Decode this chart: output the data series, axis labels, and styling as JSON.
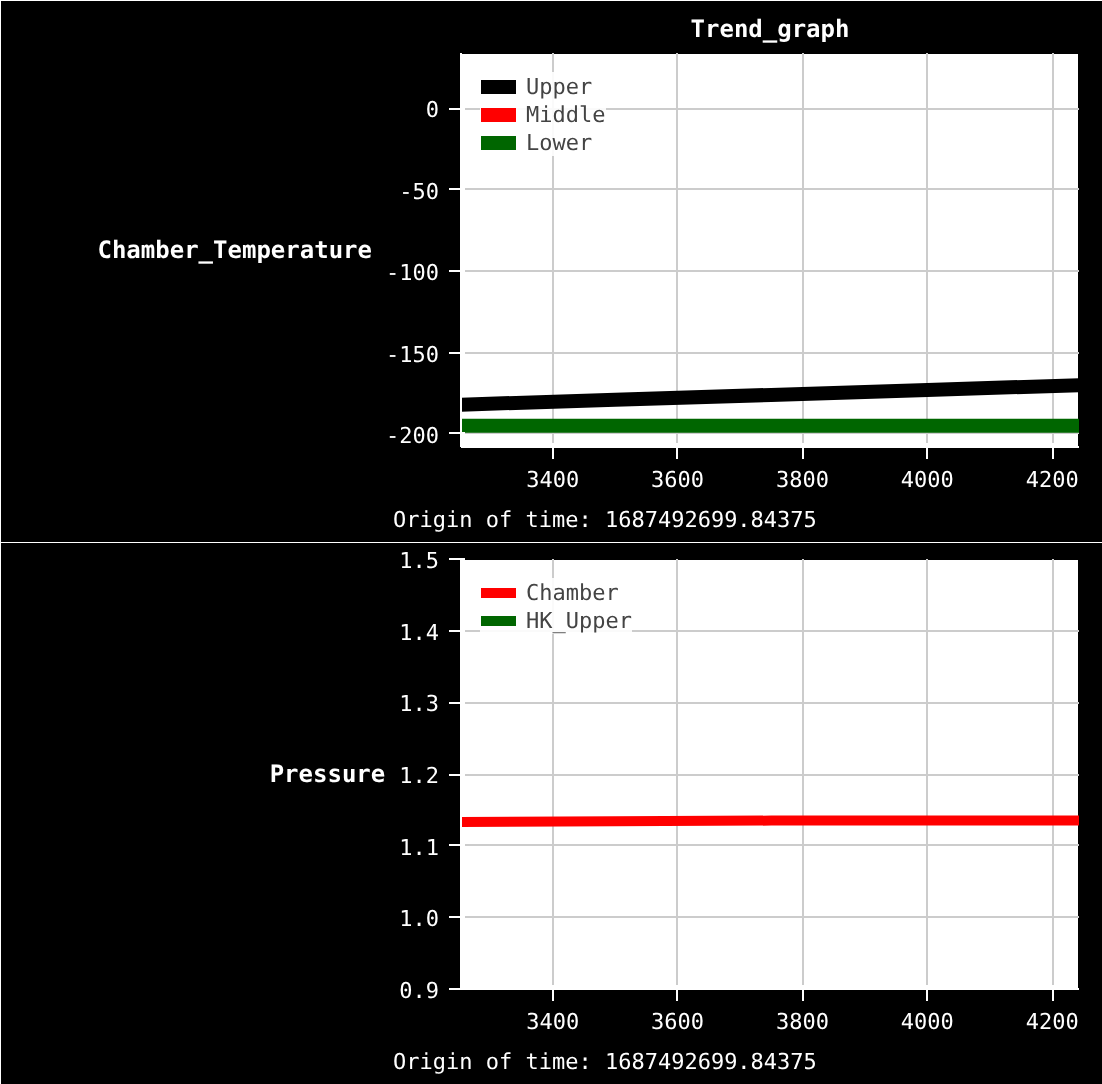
{
  "chart_data": [
    {
      "type": "line",
      "title": "Trend_graph",
      "ylabel": "Chamber_Temperature",
      "annotations": [
        "Origin of time: 1687492699.84375"
      ],
      "x": [
        3253,
        3500,
        3750,
        4000,
        4243
      ],
      "series": [
        {
          "name": "Upper",
          "color": "#000000",
          "values": [
            -182,
            -179,
            -176,
            -173,
            -170
          ]
        },
        {
          "name": "Middle",
          "color": "#ff0000",
          "values": [
            null,
            null,
            null,
            null,
            null
          ]
        },
        {
          "name": "Lower",
          "color": "#006600",
          "values": [
            -195,
            -195,
            -195,
            -195,
            -195
          ]
        }
      ],
      "xlim": [
        3253,
        4243
      ],
      "ylim": [
        -208,
        34
      ],
      "xticks": [
        3400,
        3600,
        3800,
        4000,
        4200
      ],
      "yticks": [
        -200,
        -150,
        -100,
        -50,
        0
      ],
      "grid": true,
      "legend": "top left"
    },
    {
      "type": "line",
      "ylabel": "Pressure",
      "annotations": [
        "Origin of time: 1687492699.84375"
      ],
      "x": [
        3253,
        3500,
        3750,
        4000,
        4243
      ],
      "series": [
        {
          "name": "Chamber",
          "color": "#ff0000",
          "values": [
            1.133,
            1.134,
            1.135,
            1.135,
            1.135
          ]
        },
        {
          "name": "HK_Upper",
          "color": "#006600",
          "values": [
            null,
            null,
            null,
            null,
            null
          ]
        }
      ],
      "xlim": [
        3253,
        4243
      ],
      "ylim": [
        0.9,
        1.5
      ],
      "xticks": [
        3400,
        3600,
        3800,
        4000,
        4200
      ],
      "yticks": [
        0.9,
        {
          "value": 1.0,
          "label": "1.0"
        },
        1.1,
        1.2,
        1.3,
        1.4,
        1.5
      ],
      "grid": true,
      "legend": "top left"
    }
  ]
}
